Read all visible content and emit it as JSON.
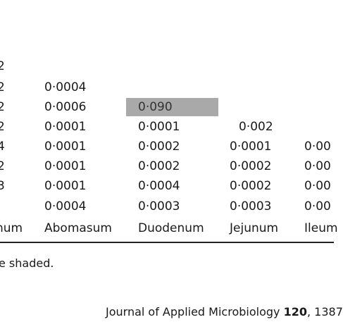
{
  "table": {
    "rows": [
      {
        "prev": "2",
        "abomasum": "",
        "duodenum": "",
        "jejunum": "",
        "ileum": ""
      },
      {
        "prev": "2",
        "abomasum": "0·0004",
        "duodenum": "",
        "jejunum": "",
        "ileum": ""
      },
      {
        "prev": "2",
        "abomasum": "0·0006",
        "duodenum": "0·090",
        "jejunum": "",
        "ileum": ""
      },
      {
        "prev": "2",
        "abomasum": "0·0001",
        "duodenum": "0·0001",
        "jejunum": "0·002",
        "ileum": ""
      },
      {
        "prev": "4",
        "abomasum": "0·0001",
        "duodenum": "0·0002",
        "jejunum": "0·0001",
        "ileum": "0·00"
      },
      {
        "prev": "2",
        "abomasum": "0·0001",
        "duodenum": "0·0002",
        "jejunum": "0·0002",
        "ileum": "0·00"
      },
      {
        "prev": "3",
        "abomasum": "0·0001",
        "duodenum": "0·0004",
        "jejunum": "0·0002",
        "ileum": "0·00"
      },
      {
        "prev": "",
        "abomasum": "0·0004",
        "duodenum": "0·0003",
        "jejunum": "0·0003",
        "ileum": "0·00"
      }
    ],
    "headers": {
      "prev": "num",
      "abomasum": "Abomasum",
      "duodenum": "Duodenum",
      "jejunum": "Jejunum",
      "ileum": "Ileum"
    },
    "shaded_color": "#a9a9a9"
  },
  "footnote": "e shaded.",
  "citation": {
    "journal": "Journal of Applied Microbiology",
    "volume": "120",
    "pages": ", 1387"
  }
}
